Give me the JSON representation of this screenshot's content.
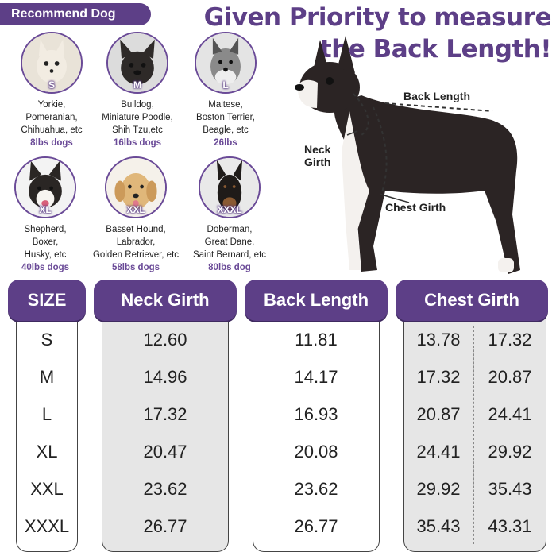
{
  "banner": {
    "recommend": "Recommend Dog"
  },
  "headline": {
    "line1": "Given Priority to measure",
    "line2": "the Back Length!"
  },
  "dogs": [
    {
      "size": "S",
      "breeds": "Yorkie,\nPomeranian,\nChihuahua, etc",
      "weight": "8lbs dogs"
    },
    {
      "size": "M",
      "breeds": "Bulldog,\nMiniature Poodle,\nShih Tzu,etc",
      "weight": "16lbs dogs"
    },
    {
      "size": "L",
      "breeds": "Maltese,\nBoston Terrier,\nBeagle, etc",
      "weight": "26lbs"
    },
    {
      "size": "XL",
      "breeds": "Shepherd,\nBoxer,\nHusky, etc",
      "weight": "40lbs dogs"
    },
    {
      "size": "XXL",
      "breeds": "Basset Hound,\nLabrador,\nGolden Retriever, etc",
      "weight": "58lbs dogs"
    },
    {
      "size": "XXXL",
      "breeds": "Doberman,\nGreat Dane,\nSaint Bernard, etc",
      "weight": "80lbs dog"
    }
  ],
  "measure_labels": {
    "back": "Back Length",
    "neck": "Neck\nGirth",
    "chest": "Chest Girth"
  },
  "table": {
    "headers": {
      "size": "SIZE",
      "neck": "Neck Girth",
      "back": "Back Length",
      "chest": "Chest Girth"
    },
    "rows": [
      {
        "size": "S",
        "neck": "12.60",
        "back": "11.81",
        "chest_min": "13.78",
        "chest_max": "17.32"
      },
      {
        "size": "M",
        "neck": "14.96",
        "back": "14.17",
        "chest_min": "17.32",
        "chest_max": "20.87"
      },
      {
        "size": "L",
        "neck": "17.32",
        "back": "16.93",
        "chest_min": "20.87",
        "chest_max": "24.41"
      },
      {
        "size": "XL",
        "neck": "20.47",
        "back": "20.08",
        "chest_min": "24.41",
        "chest_max": "29.92"
      },
      {
        "size": "XXL",
        "neck": "23.62",
        "back": "23.62",
        "chest_min": "29.92",
        "chest_max": "35.43"
      },
      {
        "size": "XXXL",
        "neck": "26.77",
        "back": "26.77",
        "chest_min": "35.43",
        "chest_max": "43.31"
      }
    ]
  },
  "colors": {
    "accent": "#5d3f87",
    "weight_text": "#6a4a97",
    "cell_bg": "#e6e6e6"
  }
}
